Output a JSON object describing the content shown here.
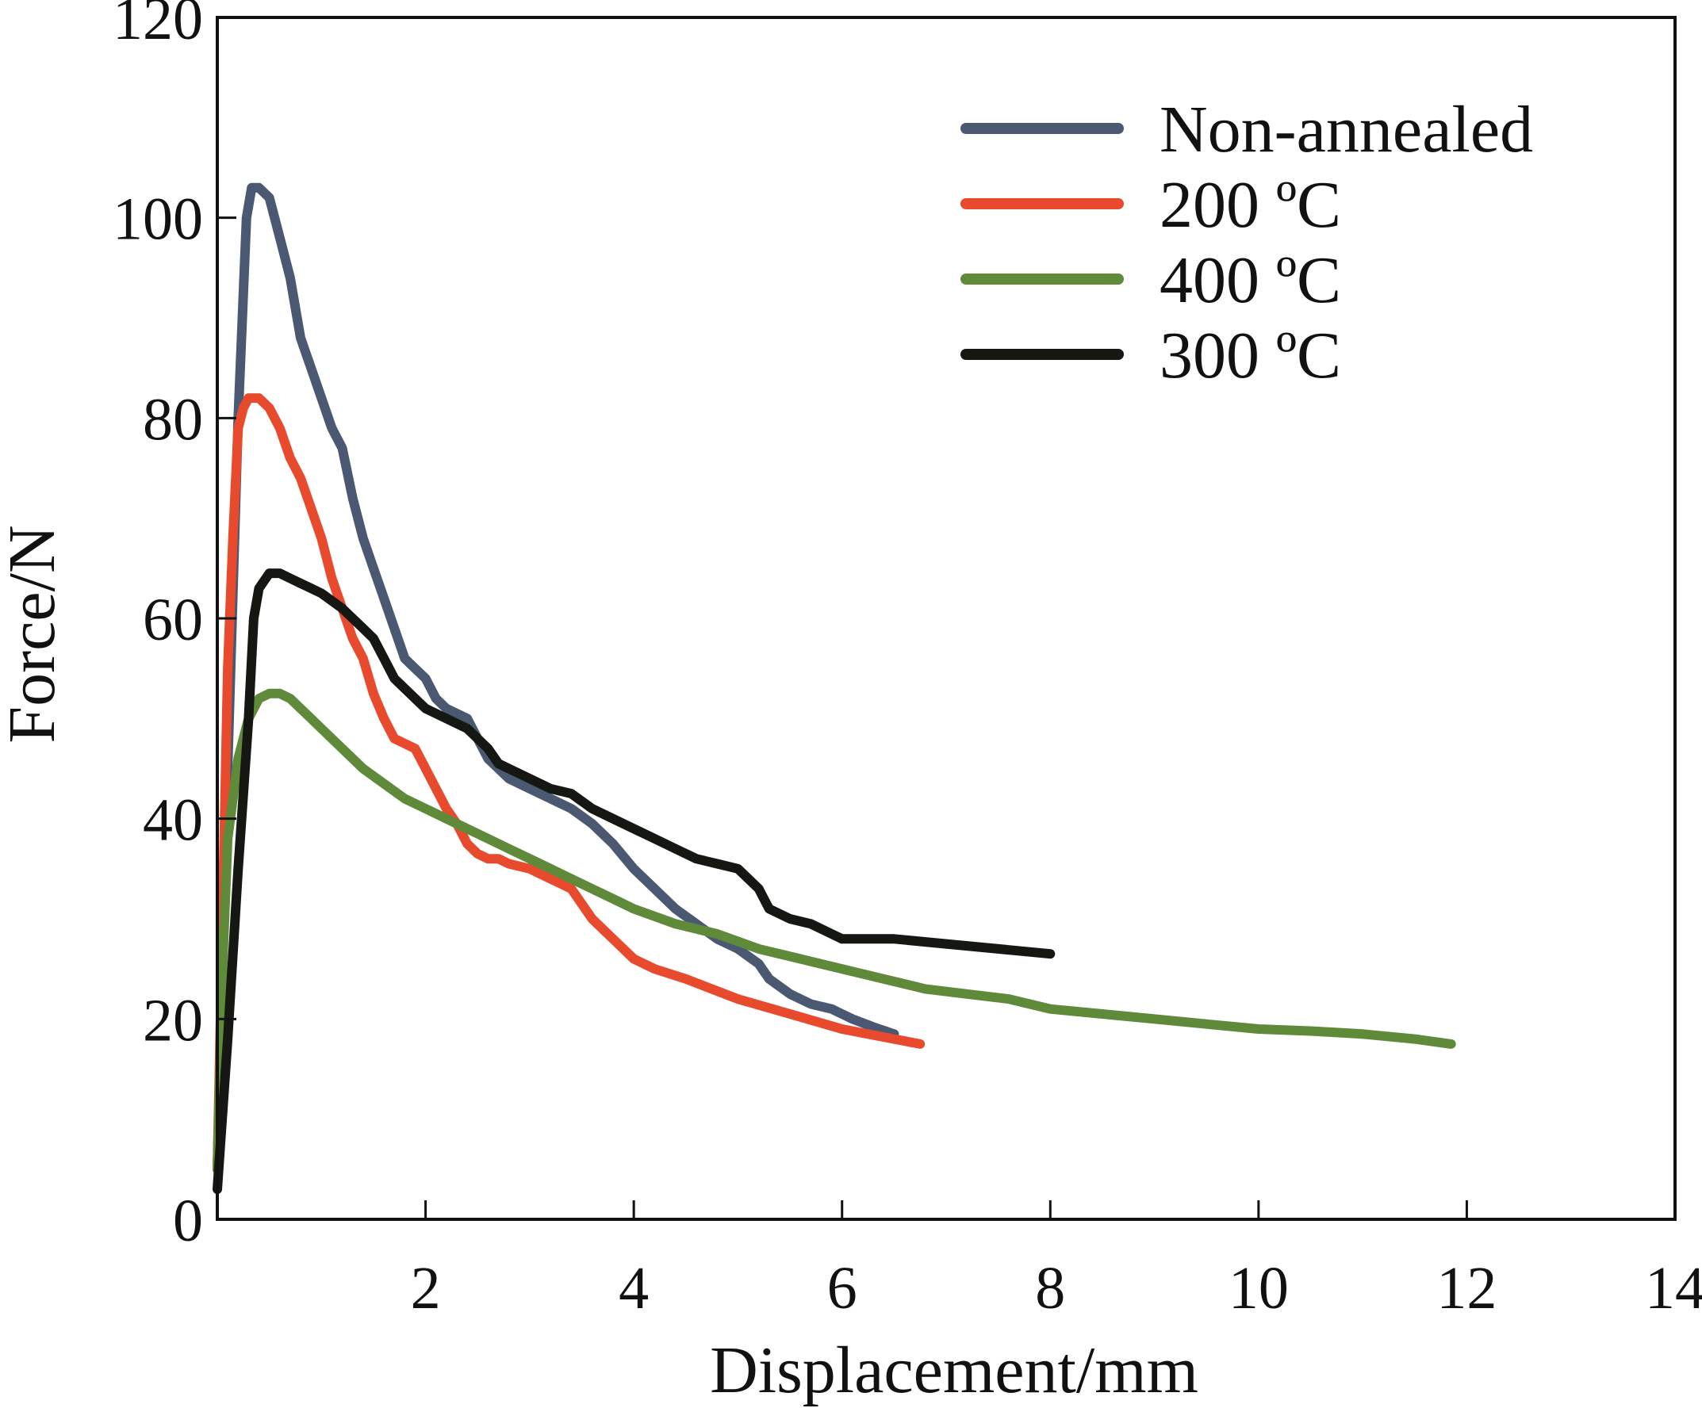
{
  "chart_data": {
    "type": "line",
    "xlabel": "Displacement/mm",
    "ylabel": "Force/N",
    "xlim": [
      0,
      14
    ],
    "ylim": [
      0,
      120
    ],
    "xticks": [
      2,
      4,
      6,
      8,
      10,
      12,
      14
    ],
    "yticks": [
      0,
      20,
      40,
      60,
      80,
      100,
      120
    ],
    "grid": false,
    "legend_position": "top-right",
    "series": [
      {
        "name": "Non-annealed",
        "color": "#4a5872",
        "x": [
          0,
          0.1,
          0.2,
          0.28,
          0.33,
          0.4,
          0.5,
          0.6,
          0.7,
          0.8,
          0.9,
          1.0,
          1.1,
          1.2,
          1.3,
          1.4,
          1.5,
          1.6,
          1.7,
          1.8,
          1.9,
          2.0,
          2.1,
          2.2,
          2.4,
          2.5,
          2.6,
          2.7,
          2.8,
          3.0,
          3.2,
          3.4,
          3.6,
          3.8,
          4.0,
          4.2,
          4.4,
          4.6,
          4.8,
          5.0,
          5.2,
          5.3,
          5.5,
          5.7,
          5.9,
          6.0,
          6.1,
          6.3,
          6.5
        ],
        "y": [
          5,
          45,
          80,
          100,
          103,
          103,
          102,
          98,
          94,
          88,
          85,
          82,
          79,
          77,
          72,
          68,
          65,
          62,
          59,
          56,
          55,
          54,
          52,
          51,
          50,
          48,
          46,
          45,
          44,
          43,
          42,
          41,
          39.5,
          37.5,
          35,
          33,
          31,
          29.5,
          28,
          27,
          25.5,
          24,
          22.5,
          21.5,
          21,
          20.5,
          20,
          19.2,
          18.5
        ]
      },
      {
        "name": "200 ºC",
        "color": "#e84a2e",
        "x": [
          0,
          0.05,
          0.1,
          0.15,
          0.2,
          0.25,
          0.3,
          0.4,
          0.5,
          0.6,
          0.7,
          0.8,
          0.9,
          1.0,
          1.1,
          1.2,
          1.3,
          1.4,
          1.5,
          1.6,
          1.7,
          1.8,
          1.9,
          2.0,
          2.1,
          2.2,
          2.3,
          2.4,
          2.5,
          2.6,
          2.7,
          2.8,
          3.0,
          3.2,
          3.4,
          3.6,
          3.8,
          4.0,
          4.2,
          4.5,
          5.0,
          5.5,
          6.0,
          6.5,
          6.75
        ],
        "y": [
          5,
          30,
          55,
          68,
          79,
          81,
          82,
          82,
          81,
          79,
          76,
          74,
          71,
          68,
          64,
          61,
          58,
          56,
          52.5,
          50,
          48,
          47.5,
          47,
          45,
          43,
          41,
          39.5,
          37.5,
          36.5,
          36,
          36,
          35.5,
          35,
          34,
          33,
          30,
          28,
          26,
          25,
          24,
          22,
          20.5,
          19,
          18,
          17.5
        ]
      },
      {
        "name": "400 ºC",
        "color": "#5f8a3a",
        "x": [
          0,
          0.05,
          0.1,
          0.2,
          0.3,
          0.4,
          0.5,
          0.6,
          0.7,
          0.8,
          0.9,
          1.0,
          1.2,
          1.4,
          1.6,
          1.8,
          2.0,
          2.2,
          2.4,
          2.6,
          2.8,
          3.0,
          3.2,
          3.4,
          3.6,
          3.8,
          4.0,
          4.4,
          4.8,
          5.2,
          5.6,
          6.0,
          6.4,
          6.8,
          7.2,
          7.6,
          8.0,
          8.5,
          9.0,
          9.5,
          10.0,
          10.5,
          11.0,
          11.5,
          11.85
        ],
        "y": [
          5,
          25,
          38,
          46,
          50,
          52,
          52.5,
          52.5,
          52,
          51,
          50,
          49,
          47,
          45,
          43.5,
          42,
          41,
          40,
          39,
          38,
          37,
          36,
          35,
          34,
          33,
          32,
          31,
          29.5,
          28.5,
          27,
          26,
          25,
          24,
          23,
          22.5,
          22,
          21,
          20.5,
          20,
          19.5,
          19,
          18.8,
          18.5,
          18,
          17.5
        ]
      },
      {
        "name": "300 ºC",
        "color": "#141712",
        "x": [
          0,
          0.1,
          0.2,
          0.3,
          0.35,
          0.4,
          0.5,
          0.6,
          0.7,
          0.8,
          0.9,
          1.0,
          1.2,
          1.4,
          1.5,
          1.6,
          1.7,
          1.8,
          1.9,
          2.0,
          2.1,
          2.2,
          2.4,
          2.5,
          2.6,
          2.7,
          2.8,
          3.0,
          3.2,
          3.4,
          3.6,
          3.8,
          4.0,
          4.2,
          4.4,
          4.6,
          4.8,
          5.0,
          5.2,
          5.3,
          5.5,
          5.7,
          5.9,
          6.0,
          6.5,
          7.0,
          7.5,
          8.0
        ],
        "y": [
          3,
          18,
          35,
          50,
          60,
          63,
          64.5,
          64.5,
          64,
          63.5,
          63,
          62.5,
          61,
          59,
          58,
          56,
          54,
          53,
          52,
          51,
          50.5,
          50,
          49,
          48,
          47,
          45.5,
          45,
          44,
          43,
          42.5,
          41,
          40,
          39,
          38,
          37,
          36,
          35.5,
          35,
          33,
          31,
          30,
          29.5,
          28.5,
          28,
          28,
          27.5,
          27,
          26.5
        ]
      }
    ]
  }
}
